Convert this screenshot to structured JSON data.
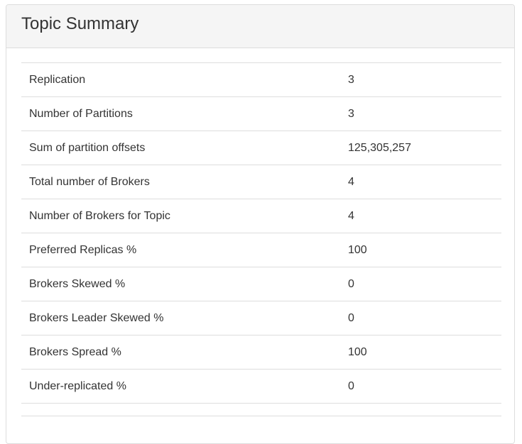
{
  "panel": {
    "title": "Topic Summary"
  },
  "summary_rows": [
    {
      "label": "Replication",
      "value": "3"
    },
    {
      "label": "Number of Partitions",
      "value": "3"
    },
    {
      "label": "Sum of partition offsets",
      "value": "125,305,257"
    },
    {
      "label": "Total number of Brokers",
      "value": "4"
    },
    {
      "label": "Number of Brokers for Topic",
      "value": "4"
    },
    {
      "label": "Preferred Replicas %",
      "value": "100"
    },
    {
      "label": "Brokers Skewed %",
      "value": "0"
    },
    {
      "label": "Brokers Leader Skewed %",
      "value": "0"
    },
    {
      "label": "Brokers Spread %",
      "value": "100"
    },
    {
      "label": "Under-replicated %",
      "value": "0"
    }
  ]
}
